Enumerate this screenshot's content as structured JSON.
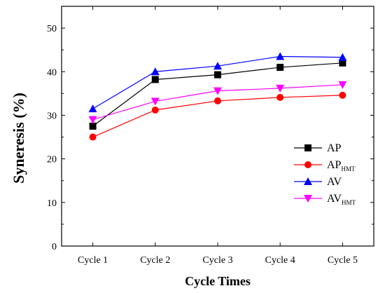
{
  "chart_data": {
    "type": "line",
    "categories": [
      "Cycle 1",
      "Cycle 2",
      "Cycle 3",
      "Cycle 4",
      "Cycle 5"
    ],
    "series": [
      {
        "name": "AP",
        "name_main": "AP",
        "name_sub": "",
        "color": "#000000",
        "marker": "square",
        "values": [
          27.5,
          38.2,
          39.3,
          41.0,
          42.0
        ]
      },
      {
        "name": "APHMT",
        "name_main": "AP",
        "name_sub": "HMT",
        "color": "#ff0000",
        "marker": "circle",
        "values": [
          25.0,
          31.2,
          33.3,
          34.1,
          34.6
        ]
      },
      {
        "name": "AV",
        "name_main": "AV",
        "name_sub": "",
        "color": "#0000ff",
        "marker": "triangle-up",
        "values": [
          31.5,
          40.0,
          41.3,
          43.5,
          43.3
        ]
      },
      {
        "name": "AVHMT",
        "name_main": "AV",
        "name_sub": "HMT",
        "color": "#ff00ff",
        "marker": "triangle-down",
        "values": [
          29.0,
          33.2,
          35.6,
          36.2,
          37.0
        ]
      }
    ],
    "xlabel": "Cycle Times",
    "ylabel": "Syneresis (%)",
    "ylim": [
      0,
      55
    ],
    "yticks": [
      0,
      10,
      20,
      30,
      40,
      50
    ],
    "grid": false,
    "legend": "right"
  }
}
